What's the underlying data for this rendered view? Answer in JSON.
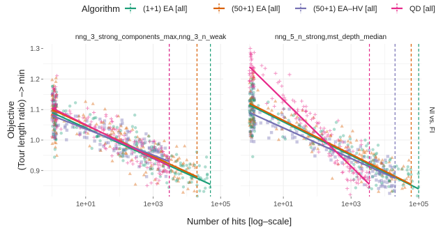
{
  "legend": {
    "title": "Algorithm",
    "items": [
      {
        "label": "(1+1) EA [all]",
        "color": "#1b9e77"
      },
      {
        "label": "(50+1) EA [all]",
        "color": "#d95f02"
      },
      {
        "label": "(50+1) EA–HV [all]",
        "color": "#7570b3"
      },
      {
        "label": "QD [all]",
        "color": "#e7298a"
      }
    ]
  },
  "chart_data": {
    "type": "scatter",
    "xlabel": "Number of hits [log–scale]",
    "ylabel_line1": "Objective",
    "ylabel_line2": "(Tour length ratio) –> min",
    "facet_row_label": "NI vs. FI",
    "x_scale": "log10",
    "xlim": [
      0.55,
      120000
    ],
    "ylim": [
      0.815,
      1.315
    ],
    "x_ticks": [
      {
        "v": 10,
        "label": "1e+01"
      },
      {
        "v": 1000,
        "label": "1e+03"
      },
      {
        "v": 100000,
        "label": "1e+05"
      }
    ],
    "y_ticks": [
      {
        "v": 0.9,
        "label": "0.9"
      },
      {
        "v": 1.0,
        "label": "1.0"
      },
      {
        "v": 1.1,
        "label": "1.1"
      },
      {
        "v": 1.2,
        "label": "1.2"
      },
      {
        "v": 1.3,
        "label": "1.3"
      }
    ],
    "grid": true,
    "legend_position": "top",
    "panels": [
      {
        "title": "nng_3_strong_components_max,nng_3_n_weak",
        "series": [
          {
            "name": "(1+1) EA [all]",
            "color": "#1b9e77",
            "marker": "circle",
            "fit_x": [
              1,
              50000
            ],
            "fit_y": [
              1.09,
              0.855
            ],
            "cutoff": 50000,
            "cloud_x": [
              1,
              50000
            ],
            "cloud_y_sd": 0.035
          },
          {
            "name": "(50+1) EA [all]",
            "color": "#d95f02",
            "marker": "triangle",
            "fit_x": [
              1,
              20000
            ],
            "fit_y": [
              1.1,
              0.88
            ],
            "cutoff": 20000,
            "cloud_x": [
              1,
              20000
            ],
            "cloud_y_sd": 0.035
          },
          {
            "name": "(50+1) EA–HV [all]",
            "color": "#7570b3",
            "marker": "square",
            "fit_x": [
              1,
              3000
            ],
            "fit_y": [
              1.08,
              0.93
            ],
            "cutoff": 3000,
            "cloud_x": [
              1,
              3000
            ],
            "cloud_y_sd": 0.03
          },
          {
            "name": "QD [all]",
            "color": "#e7298a",
            "marker": "plus",
            "fit_x": [
              1,
              3000
            ],
            "fit_y": [
              1.105,
              0.915
            ],
            "cutoff": 3000,
            "cloud_x": [
              1,
              3000
            ],
            "cloud_y_sd": 0.035
          }
        ]
      },
      {
        "title": "nng_5_n_strong,mst_depth_median",
        "series": [
          {
            "name": "(1+1) EA [all]",
            "color": "#1b9e77",
            "marker": "circle",
            "fit_x": [
              1,
              100000
            ],
            "fit_y": [
              1.115,
              0.84
            ],
            "cutoff": 100000,
            "cloud_x": [
              1,
              100000
            ],
            "cloud_y_sd": 0.035
          },
          {
            "name": "(50+1) EA [all]",
            "color": "#d95f02",
            "marker": "triangle",
            "fit_x": [
              1,
              60000
            ],
            "fit_y": [
              1.12,
              0.855
            ],
            "cutoff": 60000,
            "cloud_x": [
              1,
              60000
            ],
            "cloud_y_sd": 0.035
          },
          {
            "name": "(50+1) EA–HV [all]",
            "color": "#7570b3",
            "marker": "square",
            "fit_x": [
              1,
              20000
            ],
            "fit_y": [
              1.09,
              0.875
            ],
            "cutoff": 20000,
            "cloud_x": [
              1,
              20000
            ],
            "cloud_y_sd": 0.03
          },
          {
            "name": "QD [all]",
            "color": "#e7298a",
            "marker": "plus",
            "fit_x": [
              1,
              3500
            ],
            "fit_y": [
              1.24,
              0.855
            ],
            "cutoff": 3500,
            "cloud_x": [
              1,
              3500
            ],
            "cloud_y_sd": 0.04
          }
        ]
      }
    ]
  }
}
